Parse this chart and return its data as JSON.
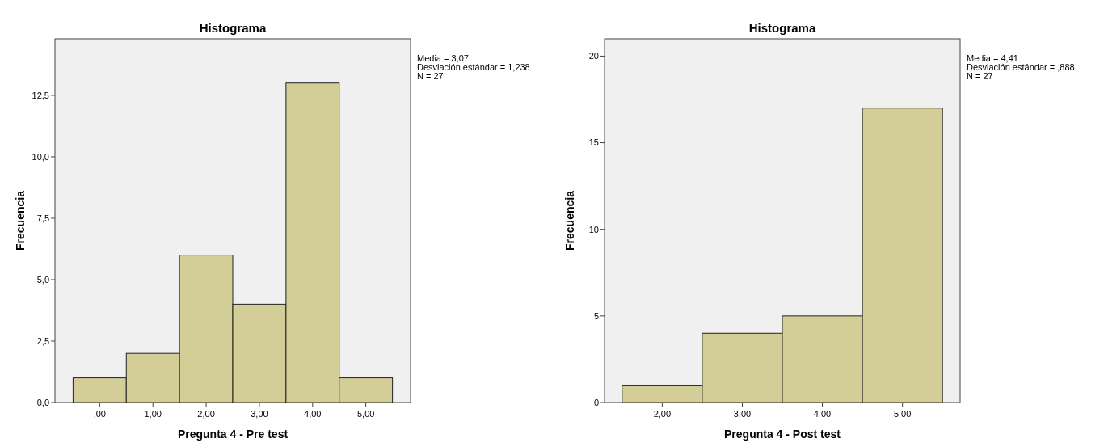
{
  "chart_data": [
    {
      "type": "histogram",
      "title": "Histograma",
      "xlabel": "Pregunta 4 - Pre test",
      "ylabel": "Frecuencia",
      "bins": [
        -0.5,
        0.5,
        1.5,
        2.5,
        3.5,
        4.5,
        5.5
      ],
      "values": [
        1,
        2,
        6,
        4,
        13,
        1
      ],
      "color": "#d3ce97",
      "xlim": [
        -0.84,
        5.84
      ],
      "ylim": [
        0,
        14.8
      ],
      "xticks": [
        {
          "value": 0,
          "label": ",00"
        },
        {
          "value": 1,
          "label": "1,00"
        },
        {
          "value": 2,
          "label": "2,00"
        },
        {
          "value": 3,
          "label": "3,00"
        },
        {
          "value": 4,
          "label": "4,00"
        },
        {
          "value": 5,
          "label": "5,00"
        }
      ],
      "yticks": [
        {
          "value": 0,
          "label": "0,0"
        },
        {
          "value": 2.5,
          "label": "2,5"
        },
        {
          "value": 5,
          "label": "5,0"
        },
        {
          "value": 7.5,
          "label": "7,5"
        },
        {
          "value": 10,
          "label": "10,0"
        },
        {
          "value": 12.5,
          "label": "12,5"
        }
      ],
      "annotations": [
        "Media = 3,07",
        "Desviación estándar = 1,238",
        "N = 27"
      ]
    },
    {
      "type": "histogram",
      "title": "Histograma",
      "xlabel": "Pregunta 4 - Post test",
      "ylabel": "Frecuencia",
      "bins": [
        1.5,
        2.5,
        3.5,
        4.5,
        5.5
      ],
      "values": [
        1,
        4,
        5,
        17
      ],
      "color": "#d3ce97",
      "xlim": [
        1.28,
        5.72
      ],
      "ylim": [
        0,
        21
      ],
      "xticks": [
        {
          "value": 2,
          "label": "2,00"
        },
        {
          "value": 3,
          "label": "3,00"
        },
        {
          "value": 4,
          "label": "4,00"
        },
        {
          "value": 5,
          "label": "5,00"
        }
      ],
      "yticks": [
        0,
        5,
        10,
        15,
        20
      ],
      "annotations": [
        "Media = 4,41",
        "Desviación estándar = ,888",
        "N = 27"
      ]
    }
  ]
}
